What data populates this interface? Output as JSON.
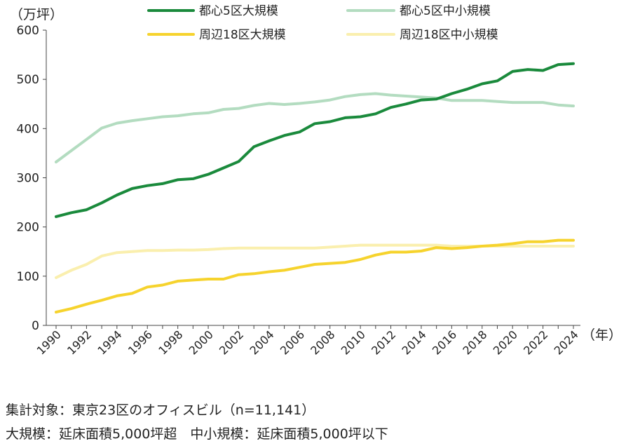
{
  "chart_data": {
    "type": "line",
    "yunit": "（万坪）",
    "xunit": "（年）",
    "ylim": [
      0,
      600
    ],
    "yticks": [
      0,
      100,
      200,
      300,
      400,
      500,
      600
    ],
    "xlim": [
      1990,
      2024
    ],
    "xticks": [
      "1990",
      "1992",
      "1994",
      "1996",
      "1998",
      "2000",
      "2002",
      "2004",
      "2006",
      "2008",
      "2010",
      "2012",
      "2014",
      "2016",
      "2018",
      "2020",
      "2022",
      "2024"
    ],
    "grid": false,
    "legend_position": "top",
    "x": [
      1990,
      1991,
      1992,
      1993,
      1994,
      1995,
      1996,
      1997,
      1998,
      1999,
      2000,
      2001,
      2002,
      2003,
      2004,
      2005,
      2006,
      2007,
      2008,
      2009,
      2010,
      2011,
      2012,
      2013,
      2014,
      2015,
      2016,
      2017,
      2018,
      2019,
      2020,
      2021,
      2022,
      2023,
      2024
    ],
    "series": [
      {
        "name": "都心5区大規模",
        "color": "#1a8a3c",
        "values": [
          221,
          229,
          235,
          249,
          265,
          278,
          284,
          288,
          296,
          298,
          307,
          320,
          333,
          363,
          375,
          386,
          393,
          410,
          414,
          422,
          424,
          430,
          443,
          450,
          458,
          460,
          471,
          480,
          491,
          497,
          516,
          520,
          518,
          530,
          532
        ]
      },
      {
        "name": "都心5区中小規模",
        "color": "#b3dcc0",
        "values": [
          332,
          355,
          378,
          401,
          411,
          416,
          420,
          424,
          426,
          430,
          432,
          439,
          441,
          447,
          451,
          449,
          451,
          454,
          458,
          465,
          469,
          471,
          468,
          466,
          464,
          462,
          457,
          457,
          457,
          455,
          453,
          453,
          453,
          448,
          446
        ]
      },
      {
        "name": "周辺18区大規模",
        "color": "#f6d32d",
        "values": [
          27,
          34,
          43,
          51,
          60,
          65,
          78,
          82,
          90,
          92,
          94,
          94,
          103,
          105,
          109,
          112,
          118,
          124,
          126,
          128,
          134,
          143,
          149,
          149,
          151,
          158,
          156,
          158,
          161,
          163,
          166,
          170,
          170,
          173,
          173
        ]
      },
      {
        "name": "周辺18区中小規模",
        "color": "#faefae",
        "values": [
          97,
          112,
          124,
          141,
          148,
          150,
          152,
          152,
          153,
          153,
          154,
          156,
          157,
          157,
          157,
          157,
          157,
          157,
          159,
          161,
          163,
          163,
          163,
          163,
          163,
          163,
          161,
          161,
          161,
          161,
          161,
          161,
          161,
          161,
          161
        ]
      }
    ]
  },
  "notes": {
    "line1": "集計対象：東京23区のオフィスビル（n=11,141）",
    "line2": "大規模：延床面積5,000坪超　中小規模：延床面積5,000坪以下"
  }
}
